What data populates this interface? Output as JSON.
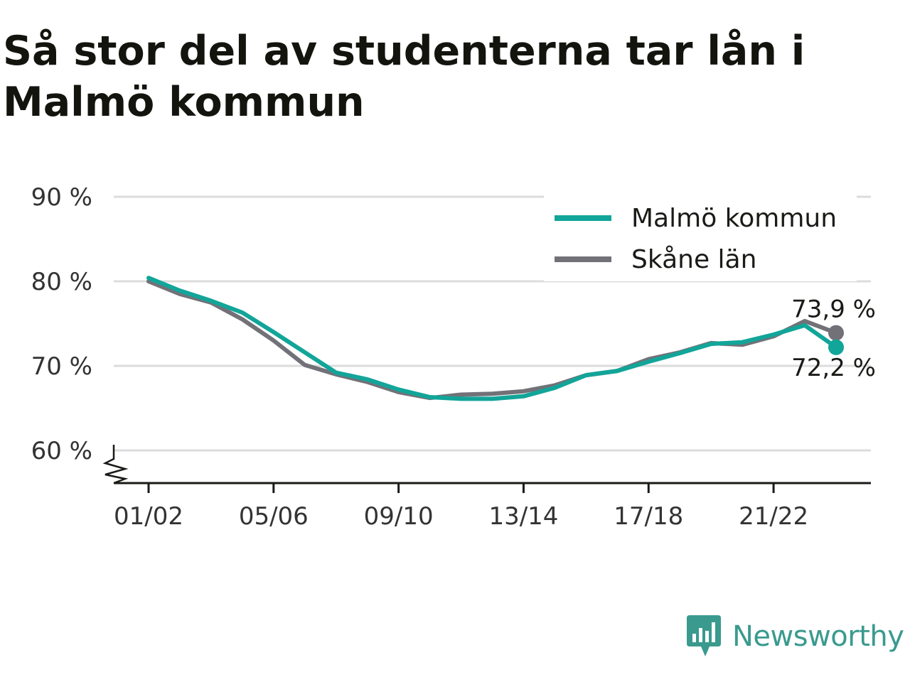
{
  "chart_data": {
    "type": "line",
    "title": "Så stor del av studenterna tar lån i Malmö kommun",
    "categories": [
      "01/02",
      "02/03",
      "03/04",
      "04/05",
      "05/06",
      "06/07",
      "07/08",
      "08/09",
      "09/10",
      "10/11",
      "11/12",
      "12/13",
      "13/14",
      "14/15",
      "15/16",
      "16/17",
      "17/18",
      "18/19",
      "19/20",
      "20/21",
      "21/22",
      "22/23",
      "23/24"
    ],
    "x_tick_labels": [
      "01/02",
      "05/06",
      "09/10",
      "13/14",
      "17/18",
      "21/22"
    ],
    "y_ticks": [
      60,
      70,
      80,
      90
    ],
    "y_tick_labels": [
      "60 %",
      "70 %",
      "80 %",
      "90 %"
    ],
    "ylim": [
      56,
      90
    ],
    "y_axis_break": true,
    "grid": true,
    "legend_position": "top-right",
    "series": [
      {
        "name": "Malmö kommun",
        "color": "#12a599",
        "values": [
          80.4,
          78.9,
          77.7,
          76.3,
          74.0,
          71.6,
          69.2,
          68.4,
          67.2,
          66.3,
          66.1,
          66.1,
          66.4,
          67.4,
          68.9,
          69.4,
          70.5,
          71.5,
          72.6,
          72.8,
          73.7,
          74.8,
          72.2
        ],
        "end_label": "72,2 %"
      },
      {
        "name": "Skåne län",
        "color": "#737178",
        "values": [
          80.0,
          78.5,
          77.5,
          75.5,
          73.0,
          70.1,
          69.0,
          68.1,
          66.9,
          66.2,
          66.6,
          66.7,
          67.0,
          67.7,
          68.9,
          69.4,
          70.8,
          71.6,
          72.7,
          72.5,
          73.5,
          75.3,
          73.9
        ],
        "end_label": "73,9 %"
      }
    ]
  },
  "branding": {
    "name": "Newsworthy",
    "logo_color": "#3a9a8e"
  }
}
